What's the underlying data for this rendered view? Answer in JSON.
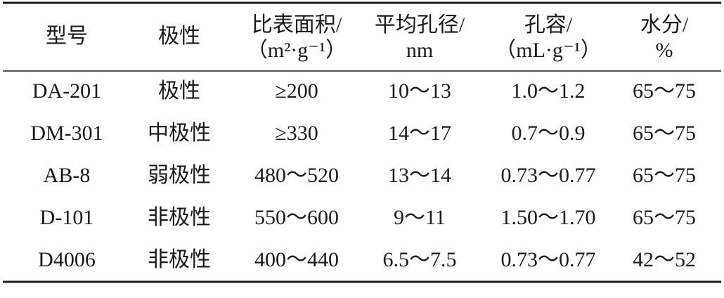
{
  "table": {
    "headers": [
      [
        "型号"
      ],
      [
        "极性"
      ],
      [
        "比表面积/",
        "（m²·g⁻¹）"
      ],
      [
        "平均孔径/",
        "nm"
      ],
      [
        "孔容/",
        "（mL·g⁻¹）"
      ],
      [
        "水分/",
        "%"
      ]
    ],
    "rows": [
      [
        "DA-201",
        "极性",
        "≥200",
        "10～13",
        "1.0～1.2",
        "65～75"
      ],
      [
        "DM-301",
        "中极性",
        "≥330",
        "14～17",
        "0.7～0.9",
        "65～75"
      ],
      [
        "AB-8",
        "弱极性",
        "480～520",
        "13～14",
        "0.73～0.77",
        "65～75"
      ],
      [
        "D-101",
        "非极性",
        "550～600",
        "9～11",
        "1.50～1.70",
        "65～75"
      ],
      [
        "D4006",
        "非极性",
        "400～440",
        "6.5～7.5",
        "0.73～0.77",
        "42～52"
      ]
    ]
  }
}
